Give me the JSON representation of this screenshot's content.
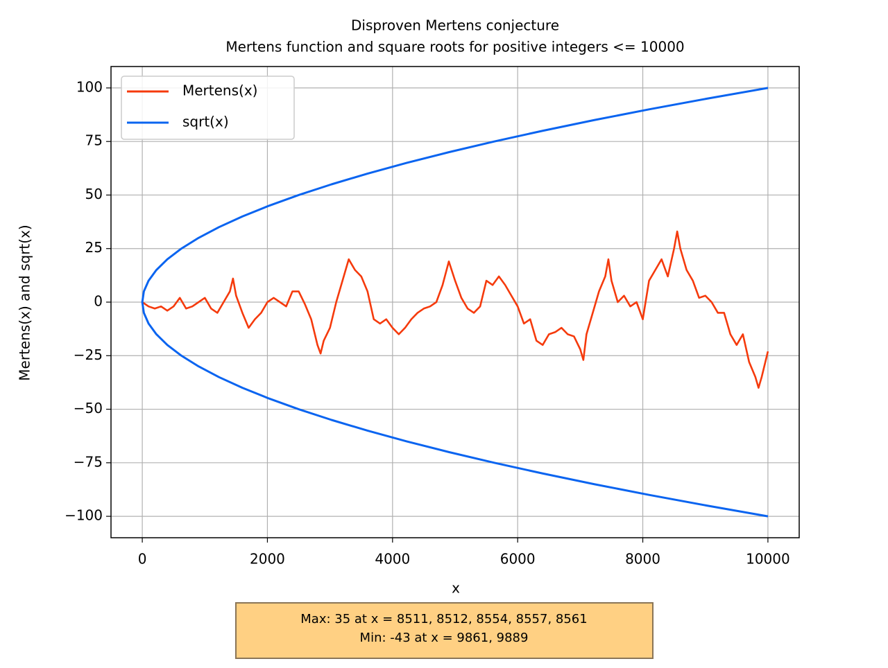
{
  "chart_data": {
    "type": "line",
    "title": "Disproven Mertens conjecture",
    "subtitle": "Mertens function and square roots for positive integers <= 10000",
    "xlabel": "x",
    "ylabel": "Mertens(x) and sqrt(x)",
    "xlim": [
      -500,
      10500
    ],
    "ylim": [
      -110,
      110
    ],
    "xticks": [
      0,
      2000,
      4000,
      6000,
      8000,
      10000
    ],
    "yticks": [
      {
        "value": -100,
        "label": "−100"
      },
      {
        "value": -75,
        "label": "−75"
      },
      {
        "value": -50,
        "label": "−50"
      },
      {
        "value": -25,
        "label": "−25"
      },
      0,
      25,
      50,
      75,
      100
    ],
    "grid": true,
    "legend": "upper left",
    "annotation": [
      "Max: 35 at x = 8511, 8512, 8554, 8557, 8561",
      "Min: -43 at x = 9861, 9889"
    ],
    "series": [
      {
        "name": "Mertens(x)",
        "color": "#f53a0c",
        "x": [
          0,
          100,
          200,
          300,
          400,
          500,
          600,
          700,
          800,
          900,
          1000,
          1100,
          1200,
          1300,
          1400,
          1450,
          1500,
          1600,
          1700,
          1800,
          1900,
          2000,
          2100,
          2200,
          2300,
          2400,
          2500,
          2600,
          2700,
          2800,
          2850,
          2900,
          3000,
          3100,
          3200,
          3300,
          3400,
          3500,
          3600,
          3700,
          3800,
          3900,
          4000,
          4100,
          4200,
          4300,
          4400,
          4500,
          4600,
          4700,
          4800,
          4900,
          5000,
          5100,
          5200,
          5300,
          5400,
          5500,
          5600,
          5700,
          5800,
          5900,
          6000,
          6100,
          6200,
          6300,
          6400,
          6500,
          6600,
          6700,
          6800,
          6900,
          7000,
          7050,
          7100,
          7200,
          7300,
          7400,
          7450,
          7500,
          7600,
          7700,
          7800,
          7900,
          8000,
          8100,
          8200,
          8300,
          8400,
          8500,
          8550,
          8600,
          8700,
          8800,
          8900,
          9000,
          9100,
          9200,
          9300,
          9400,
          9500,
          9600,
          9700,
          9800,
          9850,
          9900,
          10000
        ],
        "values": [
          0,
          -2,
          -3,
          -2,
          -4,
          -2,
          2,
          -3,
          -2,
          0,
          2,
          -3,
          -5,
          0,
          5,
          11,
          3,
          -5,
          -12,
          -8,
          -5,
          0,
          2,
          0,
          -2,
          5,
          5,
          -1,
          -8,
          -20,
          -24,
          -18,
          -12,
          0,
          10,
          20,
          15,
          12,
          5,
          -8,
          -10,
          -8,
          -12,
          -15,
          -12,
          -8,
          -5,
          -3,
          -2,
          0,
          8,
          19,
          10,
          2,
          -3,
          -5,
          -2,
          10,
          8,
          12,
          8,
          3,
          -2,
          -10,
          -8,
          -18,
          -20,
          -15,
          -14,
          -12,
          -15,
          -16,
          -22,
          -27,
          -15,
          -5,
          5,
          12,
          20,
          10,
          0,
          3,
          -2,
          0,
          -8,
          10,
          15,
          20,
          12,
          25,
          33,
          25,
          15,
          10,
          2,
          3,
          0,
          -5,
          -5,
          -15,
          -20,
          -15,
          -28,
          -35,
          -40,
          -35,
          -23
        ]
      },
      {
        "name": "sqrt(x)",
        "color": "#0a64f0",
        "x": [
          10000,
          9025,
          8100,
          7225,
          6400,
          5625,
          4900,
          4225,
          3600,
          3025,
          2500,
          2025,
          1600,
          1225,
          900,
          625,
          400,
          225,
          100,
          25,
          0,
          25,
          100,
          225,
          400,
          625,
          900,
          1225,
          1600,
          2025,
          2500,
          3025,
          3600,
          4225,
          4900,
          5625,
          6400,
          7225,
          8100,
          9025,
          10000
        ],
        "values": [
          -100,
          -95,
          -90,
          -85,
          -80,
          -75,
          -70,
          -65,
          -60,
          -55,
          -50,
          -45,
          -40,
          -35,
          -30,
          -25,
          -20,
          -15,
          -10,
          -5,
          0,
          5,
          10,
          15,
          20,
          25,
          30,
          35,
          40,
          45,
          50,
          55,
          60,
          65,
          70,
          75,
          80,
          85,
          90,
          95,
          100
        ]
      }
    ]
  }
}
